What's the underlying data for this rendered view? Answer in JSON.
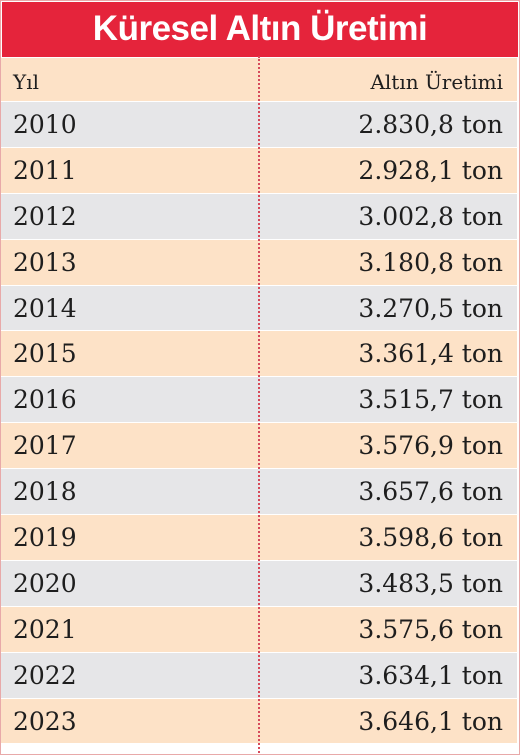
{
  "title": "Küresel Altın Üretimi",
  "colors": {
    "title_bg": "#e5243b",
    "row_gray": "#e6e6e8",
    "row_peach": "#fde2c7",
    "divider": "#d64a5a"
  },
  "chart_data": {
    "type": "table",
    "title": "Küresel Altın Üretimi",
    "columns": [
      "Yıl",
      "Altın Üretimi"
    ],
    "rows": [
      {
        "year": "2010",
        "value": "2.830,8 ton"
      },
      {
        "year": "2011",
        "value": "2.928,1 ton"
      },
      {
        "year": "2012",
        "value": "3.002,8 ton"
      },
      {
        "year": "2013",
        "value": "3.180,8 ton"
      },
      {
        "year": "2014",
        "value": "3.270,5 ton"
      },
      {
        "year": "2015",
        "value": "3.361,4 ton"
      },
      {
        "year": "2016",
        "value": "3.515,7 ton"
      },
      {
        "year": "2017",
        "value": "3.576,9 ton"
      },
      {
        "year": "2018",
        "value": "3.657,6 ton"
      },
      {
        "year": "2019",
        "value": "3.598,6 ton"
      },
      {
        "year": "2020",
        "value": "3.483,5 ton"
      },
      {
        "year": "2021",
        "value": "3.575,6 ton"
      },
      {
        "year": "2022",
        "value": "3.634,1 ton"
      },
      {
        "year": "2023",
        "value": "3.646,1 ton"
      }
    ]
  }
}
